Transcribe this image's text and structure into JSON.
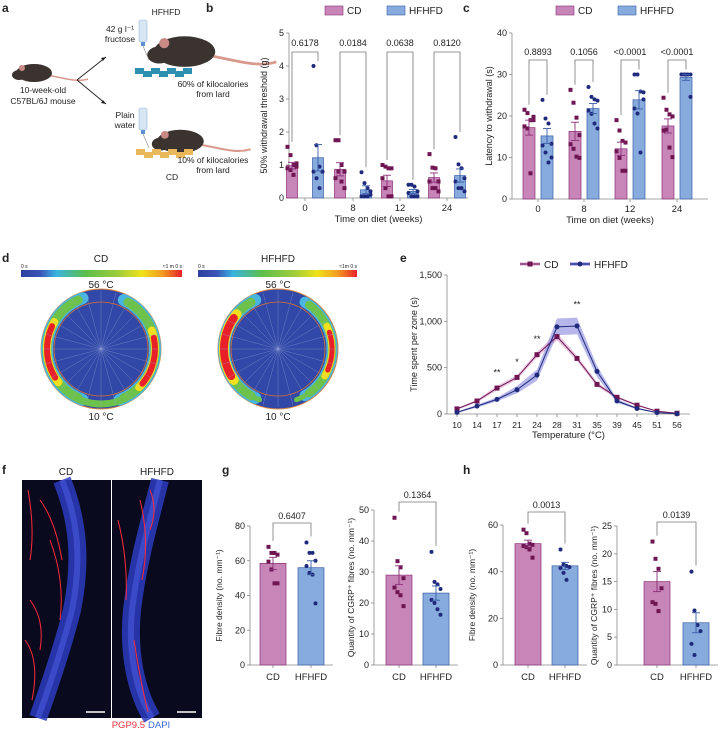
{
  "panel_labels": {
    "a": "a",
    "b": "b",
    "c": "c",
    "d": "d",
    "e": "e",
    "f": "f",
    "g": "g",
    "h": "h"
  },
  "colors": {
    "cd_bar": "#c785b8",
    "cd_edge": "#8a2f78",
    "cd_point": "#6e1552",
    "hf_bar": "#86abdc",
    "hf_edge": "#3a5ea8",
    "hf_point": "#1f2a7c"
  },
  "panel_a": {
    "start_label_1": "10-week-old",
    "start_label_2": "C57BL/6J mouse",
    "hfhfd_title": "HFHFD",
    "fructose_1": "42 g l⁻¹",
    "fructose_2": "fructose",
    "hfhfd_diet_1": "60% of kilocalories",
    "hfhfd_diet_2": "from lard",
    "plain_1": "Plain",
    "plain_2": "water",
    "cd_diet_1": "10% of kilocalories",
    "cd_diet_2": "from lard",
    "cd_title": "CD"
  },
  "panel_d": {
    "titles": [
      "CD",
      "HFHFD"
    ],
    "scale_min": "0 s",
    "scale_max": [
      "≈1 m 0 s",
      "≈1m 0 s"
    ],
    "top_temp": "56 °C",
    "bottom_temp": "10 °C"
  },
  "panel_f": {
    "titles": [
      "CD",
      "HFHFD"
    ],
    "stain_red": "PGP9.5",
    "stain_blue": "DAPI"
  },
  "chart_data": [
    {
      "id": "chart-b",
      "type": "bar",
      "legend": [
        "CD",
        "HFHFD"
      ],
      "legend_position": "top",
      "categories": [
        "0",
        "8",
        "12",
        "24"
      ],
      "xlabel": "Time on diet (weeks)",
      "ylabel": "50% withdrawal threshold (g)",
      "ylim": [
        0,
        5
      ],
      "yticks": [
        0,
        1,
        2,
        3,
        4,
        5
      ],
      "ytick_labels": [
        "0",
        "1",
        "2",
        "3",
        "4",
        "5"
      ],
      "pvalues": [
        "0.6178",
        "0.0184",
        "0.0638",
        "0.8120"
      ],
      "series": [
        {
          "name": "CD",
          "mean": [
            0.98,
            0.87,
            0.52,
            0.62
          ],
          "sem": [
            0.1,
            0.2,
            0.17,
            0.14
          ],
          "points": [
            [
              1.55,
              1.3,
              1.0,
              0.95,
              0.9,
              0.85,
              0.7,
              1.05
            ],
            [
              1.75,
              1.75,
              1.0,
              0.8,
              0.6,
              0.8,
              0.5,
              0.3
            ],
            [
              1.0,
              0.95,
              0.9,
              0.9,
              0.6,
              0.3,
              0.05,
              0.05
            ],
            [
              1.33,
              0.92,
              0.9,
              0.5,
              0.5,
              0.3,
              0.3,
              0.2
            ]
          ]
        },
        {
          "name": "HFHFD",
          "mean": [
            1.22,
            0.25,
            0.2,
            0.68
          ],
          "sem": [
            0.4,
            0.12,
            0.06,
            0.2
          ],
          "points": [
            [
              4.0,
              1.6,
              0.95,
              0.8,
              0.8,
              0.6,
              0.3,
              0.8
            ],
            [
              0.78,
              0.45,
              0.3,
              0.1,
              0.05,
              0.05,
              0.05,
              0.2
            ],
            [
              0.4,
              0.4,
              0.35,
              0.2,
              0.15,
              0.05,
              0.05,
              0.05
            ],
            [
              1.85,
              1.02,
              0.9,
              0.6,
              0.5,
              0.3,
              0.3,
              0.2
            ]
          ]
        }
      ]
    },
    {
      "id": "chart-c",
      "type": "bar",
      "legend": [
        "CD",
        "HFHFD"
      ],
      "legend_position": "top",
      "categories": [
        "0",
        "8",
        "12",
        "24"
      ],
      "xlabel": "Time on diet (weeks)",
      "ylabel": "Latency to withdrawal (s)",
      "ylim": [
        0,
        40
      ],
      "yticks": [
        0,
        10,
        20,
        30,
        40
      ],
      "ytick_labels": [
        "0",
        "10",
        "20",
        "30",
        "40"
      ],
      "pvalues": [
        "0.8893",
        "0.1056",
        "<0.0001",
        "<0.0001"
      ],
      "series": [
        {
          "name": "CD",
          "mean": [
            17.2,
            16.3,
            12.1,
            17.6
          ],
          "sem": [
            1.8,
            2.2,
            1.6,
            1.7
          ],
          "points": [
            [
              21.5,
              20.7,
              19,
              19,
              17.5,
              17,
              6.2,
              19.8
            ],
            [
              26.3,
              23.2,
              19.6,
              15.4,
              13.2,
              12.1,
              10.2,
              9.9
            ],
            [
              19,
              16.5,
              14,
              13.6,
              11.5,
              9.9,
              6.8,
              6.8
            ],
            [
              24.4,
              21.5,
              20.4,
              19.9,
              16.5,
              16.7,
              12.4,
              10.1
            ]
          ]
        },
        {
          "name": "HFHFD",
          "mean": [
            15.2,
            21.8,
            23.9,
            29.3
          ],
          "sem": [
            1.8,
            1.2,
            2.2,
            0.7
          ],
          "points": [
            [
              23.9,
              19.4,
              18.2,
              13.3,
              12.9,
              11.2,
              8.8,
              10
            ],
            [
              27,
              24.6,
              24,
              23.7,
              21.3,
              20.5,
              18.2,
              17
            ],
            [
              30,
              30,
              25.9,
              25.7,
              21.8,
              20.6,
              11.2,
              24
            ],
            [
              30,
              30,
              30,
              30,
              30,
              30,
              30,
              24.6
            ]
          ]
        }
      ]
    },
    {
      "id": "chart-e",
      "type": "line",
      "legend": [
        "CD",
        "HFHFD"
      ],
      "legend_position": "top",
      "x": [
        "10",
        "14",
        "17",
        "21",
        "24",
        "28",
        "31",
        "35",
        "39",
        "45",
        "51",
        "56"
      ],
      "xlabel": "Temperature (°C)",
      "ylabel": "Time spent per zone (s)",
      "ylim": [
        0,
        1500
      ],
      "yticks": [
        0,
        500,
        1000,
        1500
      ],
      "ytick_labels": [
        "0",
        "500",
        "1,000",
        "1,500"
      ],
      "significance": [
        {
          "x_index": 2,
          "mark": "**"
        },
        {
          "x_index": 3,
          "mark": "*"
        },
        {
          "x_index": 4,
          "mark": "**"
        },
        {
          "x_index": 6,
          "mark": "**"
        }
      ],
      "series": [
        {
          "name": "CD",
          "values": [
            55,
            140,
            280,
            395,
            640,
            835,
            600,
            320,
            180,
            95,
            30,
            8
          ],
          "sem": [
            10,
            15,
            25,
            25,
            30,
            40,
            30,
            25,
            15,
            10,
            5,
            3
          ]
        },
        {
          "name": "HFHFD",
          "values": [
            18,
            85,
            158,
            262,
            420,
            940,
            950,
            460,
            140,
            60,
            15,
            3
          ],
          "sem": [
            8,
            15,
            20,
            40,
            60,
            90,
            90,
            60,
            20,
            10,
            5,
            2
          ]
        }
      ]
    },
    {
      "id": "chart-g1",
      "type": "bar",
      "categories": [
        "CD",
        "HFHFD"
      ],
      "ylabel": "Fibre density (no. mm⁻¹)",
      "ylim": [
        0,
        80
      ],
      "yticks": [
        0,
        20,
        40,
        60,
        80
      ],
      "ytick_labels": [
        "0",
        "20",
        "40",
        "60",
        "80"
      ],
      "pvalue": "0.6407",
      "mean": [
        58.5,
        56
      ],
      "sem": [
        3.5,
        4
      ],
      "points": [
        [
          68,
          64.5,
          64.5,
          63.5,
          59.5,
          55,
          47,
          47
        ],
        [
          70.5,
          64.5,
          64.5,
          60,
          57,
          53,
          52,
          35.5
        ]
      ]
    },
    {
      "id": "chart-g2",
      "type": "bar",
      "categories": [
        "CD",
        "HFHFD"
      ],
      "ylabel": "Quantity of CGRP⁺ fibres (no. mm⁻¹)",
      "ylim": [
        0,
        50
      ],
      "yticks": [
        0,
        10,
        20,
        30,
        40,
        50
      ],
      "ytick_labels": [
        "0",
        "10",
        "20",
        "30",
        "40",
        "50"
      ],
      "pvalue": "0.1364",
      "mean": [
        29,
        23.2
      ],
      "sem": [
        3,
        2.3
      ],
      "points": [
        [
          47.5,
          33.5,
          31.5,
          28,
          25,
          23.5,
          22.5,
          19
        ],
        [
          36.5,
          26.8,
          26,
          24.5,
          21,
          20,
          18,
          16.2
        ]
      ]
    },
    {
      "id": "chart-h1",
      "type": "bar",
      "categories": [
        "CD",
        "HFHFD"
      ],
      "ylabel": "Fibre density (no. mm⁻¹)",
      "ylim": [
        0,
        60
      ],
      "yticks": [
        0,
        20,
        40,
        60
      ],
      "ytick_labels": [
        "0",
        "20",
        "40",
        "60"
      ],
      "pvalue": "0.0013",
      "mean": [
        52,
        42.5
      ],
      "sem": [
        1.5,
        1.5
      ],
      "points": [
        [
          58,
          56.5,
          52,
          51.5,
          51,
          50.5,
          49.5,
          46
        ],
        [
          49.5,
          43,
          42.5,
          42,
          41.5,
          39.5,
          36.5
        ]
      ]
    },
    {
      "id": "chart-h2",
      "type": "bar",
      "categories": [
        "CD",
        "HFHFD"
      ],
      "ylabel": "Quantity of CGRP⁺ fibres (no. mm⁻¹)",
      "ylim": [
        0,
        25
      ],
      "yticks": [
        0,
        5,
        10,
        15,
        20,
        25
      ],
      "ytick_labels": [
        "0",
        "5",
        "10",
        "15",
        "20",
        "25"
      ],
      "pvalue": "0.0139",
      "mean": [
        15,
        7.6
      ],
      "sem": [
        1.8,
        1.8
      ],
      "points": [
        [
          22.2,
          19.1,
          17.3,
          13.8,
          11.3,
          11,
          9.7
        ],
        [
          16.8,
          9.8,
          7.2,
          6.1,
          3.8,
          1.8
        ]
      ]
    }
  ]
}
